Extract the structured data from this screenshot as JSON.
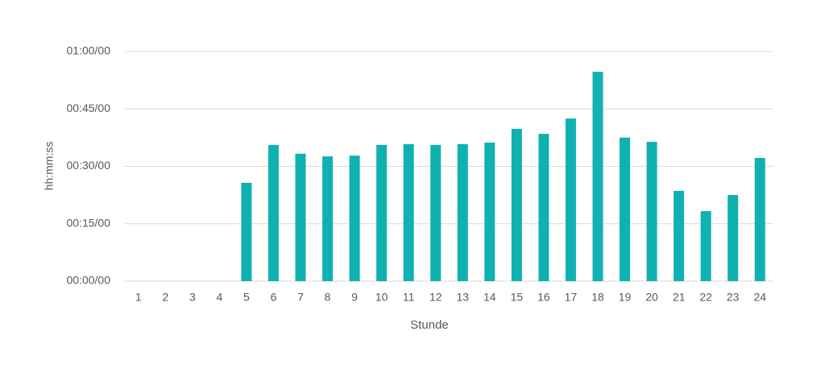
{
  "chart_data": {
    "type": "bar",
    "x_label": "Stunde",
    "y_label": "hh:mm:ss",
    "categories": [
      "1",
      "2",
      "3",
      "4",
      "5",
      "6",
      "7",
      "8",
      "9",
      "10",
      "11",
      "12",
      "13",
      "14",
      "15",
      "16",
      "17",
      "18",
      "19",
      "20",
      "21",
      "22",
      "23",
      "24"
    ],
    "values": [
      0,
      0,
      0,
      0,
      25.7,
      35.6,
      33.3,
      32.6,
      32.8,
      35.6,
      35.8,
      35.6,
      35.8,
      36.2,
      39.8,
      38.5,
      42.5,
      54.7,
      37.5,
      36.4,
      23.6,
      18.3,
      22.5,
      32.2
    ],
    "color": "#0fb1b1",
    "ylim": [
      0,
      60
    ],
    "yticks": [
      {
        "value": 0,
        "label": "00:00/00"
      },
      {
        "value": 15,
        "label": "00:15/00"
      },
      {
        "value": 30,
        "label": "00:30/00"
      },
      {
        "value": 45,
        "label": "00:45/00"
      },
      {
        "value": 60,
        "label": "01:00/00"
      }
    ],
    "grid": true
  }
}
